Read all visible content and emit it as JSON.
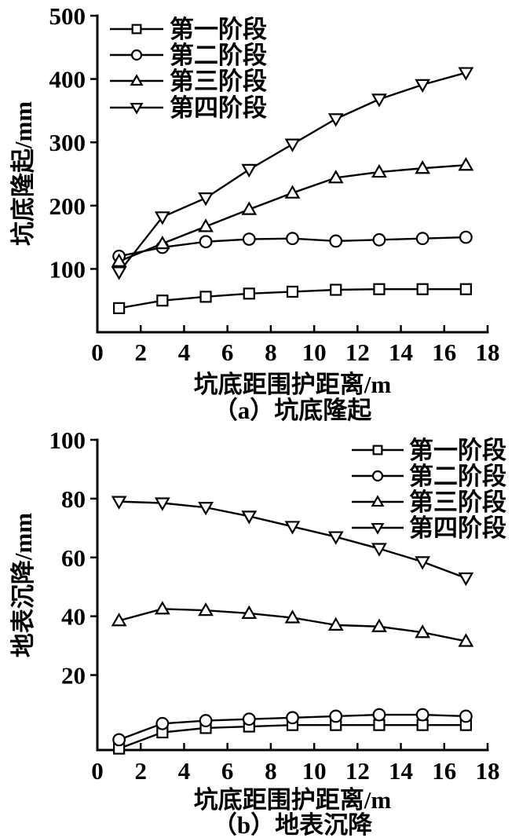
{
  "figure": {
    "background": "#ffffff",
    "line_color": "#000000",
    "text_color": "#000000",
    "marker_fill": "#ffffff"
  },
  "legend_labels": [
    "第一阶段",
    "第二阶段",
    "第三阶段",
    "第四阶段"
  ],
  "chart_data": [
    {
      "type": "line",
      "title": "（a）坑底隆起",
      "xlabel": "坑底距围护距离/m",
      "ylabel": "坑底隆起/mm",
      "x": [
        1,
        3,
        5,
        7,
        9,
        11,
        13,
        15,
        17
      ],
      "xlim": [
        0,
        18
      ],
      "xticks": [
        0,
        2,
        4,
        6,
        8,
        10,
        12,
        14,
        16,
        18
      ],
      "ylim": [
        0,
        500
      ],
      "yticks": [
        100,
        200,
        300,
        400,
        500
      ],
      "grid": false,
      "legend_position": "top-left",
      "series": [
        {
          "name": "第一阶段",
          "marker": "square",
          "values": [
            38,
            50,
            56,
            61,
            64,
            67,
            68,
            68,
            68
          ]
        },
        {
          "name": "第二阶段",
          "marker": "circle",
          "values": [
            120,
            134,
            143,
            147,
            148,
            144,
            146,
            148,
            150
          ]
        },
        {
          "name": "第三阶段",
          "marker": "triangle-up",
          "values": [
            112,
            140,
            167,
            194,
            220,
            244,
            253,
            259,
            264
          ]
        },
        {
          "name": "第四阶段",
          "marker": "triangle-down",
          "values": [
            95,
            182,
            212,
            257,
            297,
            337,
            368,
            391,
            410
          ]
        }
      ]
    },
    {
      "type": "line",
      "title": "（b）地表沉降",
      "xlabel": "坑底距围护距离/m",
      "ylabel": "地表沉降/mm",
      "x": [
        1,
        3,
        5,
        7,
        9,
        11,
        13,
        15,
        17
      ],
      "xlim": [
        0,
        18
      ],
      "xticks": [
        0,
        2,
        4,
        6,
        8,
        10,
        12,
        14,
        16,
        18
      ],
      "ylim": [
        -5.5,
        100
      ],
      "yticks": [
        20,
        40,
        60,
        80,
        100
      ],
      "grid": false,
      "legend_position": "top-right",
      "series": [
        {
          "name": "第一阶段",
          "marker": "square",
          "values": [
            -5,
            0.5,
            2,
            2.5,
            3,
            3,
            3,
            3,
            3
          ]
        },
        {
          "name": "第二阶段",
          "marker": "circle",
          "values": [
            -2,
            3.5,
            4.5,
            5,
            5.5,
            6,
            6.5,
            6.5,
            6
          ]
        },
        {
          "name": "第三阶段",
          "marker": "triangle-up",
          "values": [
            38.5,
            42.5,
            42,
            41,
            39.5,
            37,
            36.5,
            34.5,
            31.5
          ]
        },
        {
          "name": "第四阶段",
          "marker": "triangle-down",
          "values": [
            79,
            78.5,
            77,
            74,
            70.5,
            67,
            63,
            58.5,
            53
          ]
        }
      ]
    }
  ]
}
